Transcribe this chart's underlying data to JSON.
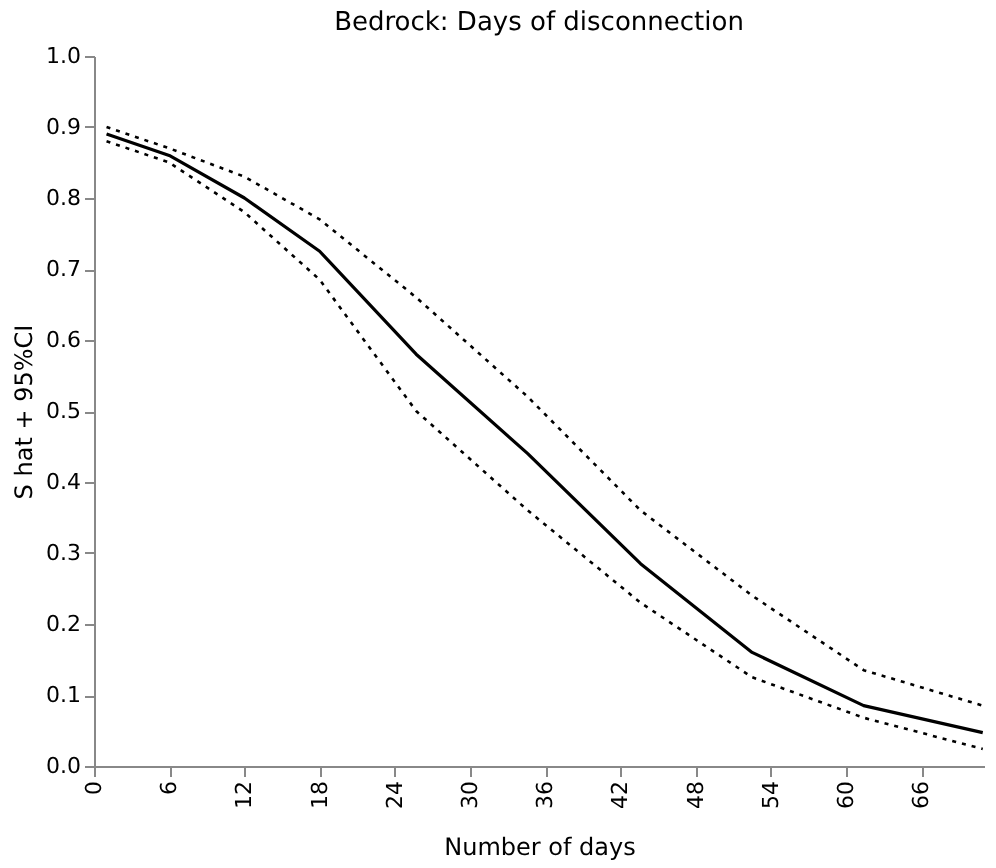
{
  "chart_data": {
    "type": "line",
    "title": "Bedrock: Days of disconnection",
    "xlabel": "Number of days",
    "ylabel": "S hat + 95%CI",
    "xlim": [
      0,
      71
    ],
    "xticks": [
      0,
      6,
      12,
      18,
      24,
      30,
      36,
      42,
      48,
      54,
      60,
      66
    ],
    "ylim": [
      0,
      1
    ],
    "yticks": [
      {
        "value": 0,
        "label": "0.0"
      },
      0.1,
      0.2,
      0.3,
      0.4,
      0.5,
      0.6,
      0.7,
      0.8,
      0.9,
      {
        "value": 1,
        "label": "1.0"
      }
    ],
    "grid": false,
    "marker": "none",
    "series": [
      {
        "color": "#000000",
        "line_style": "solid",
        "x": [
          1,
          6,
          12,
          18,
          25.7,
          34.6,
          43.6,
          52.5,
          61.4,
          70.9
        ],
        "values": [
          0.89,
          0.86,
          0.8,
          0.725,
          0.58,
          0.44,
          0.285,
          0.16,
          0.085,
          0.047
        ]
      },
      {
        "color": "#000000",
        "line_style": "dotted",
        "x": [
          1,
          6,
          12,
          18,
          25.7,
          34.6,
          43.6,
          52.5,
          61.4,
          70.9
        ],
        "values": [
          0.9,
          0.87,
          0.83,
          0.77,
          0.66,
          0.52,
          0.36,
          0.24,
          0.135,
          0.085
        ]
      },
      {
        "color": "#000000",
        "line_style": "dotted",
        "x": [
          1,
          6,
          12,
          18,
          25.7,
          34.6,
          43.6,
          52.5,
          61.4,
          70.9
        ],
        "values": [
          0.88,
          0.85,
          0.78,
          0.685,
          0.5,
          0.36,
          0.23,
          0.125,
          0.068,
          0.024
        ]
      }
    ]
  }
}
